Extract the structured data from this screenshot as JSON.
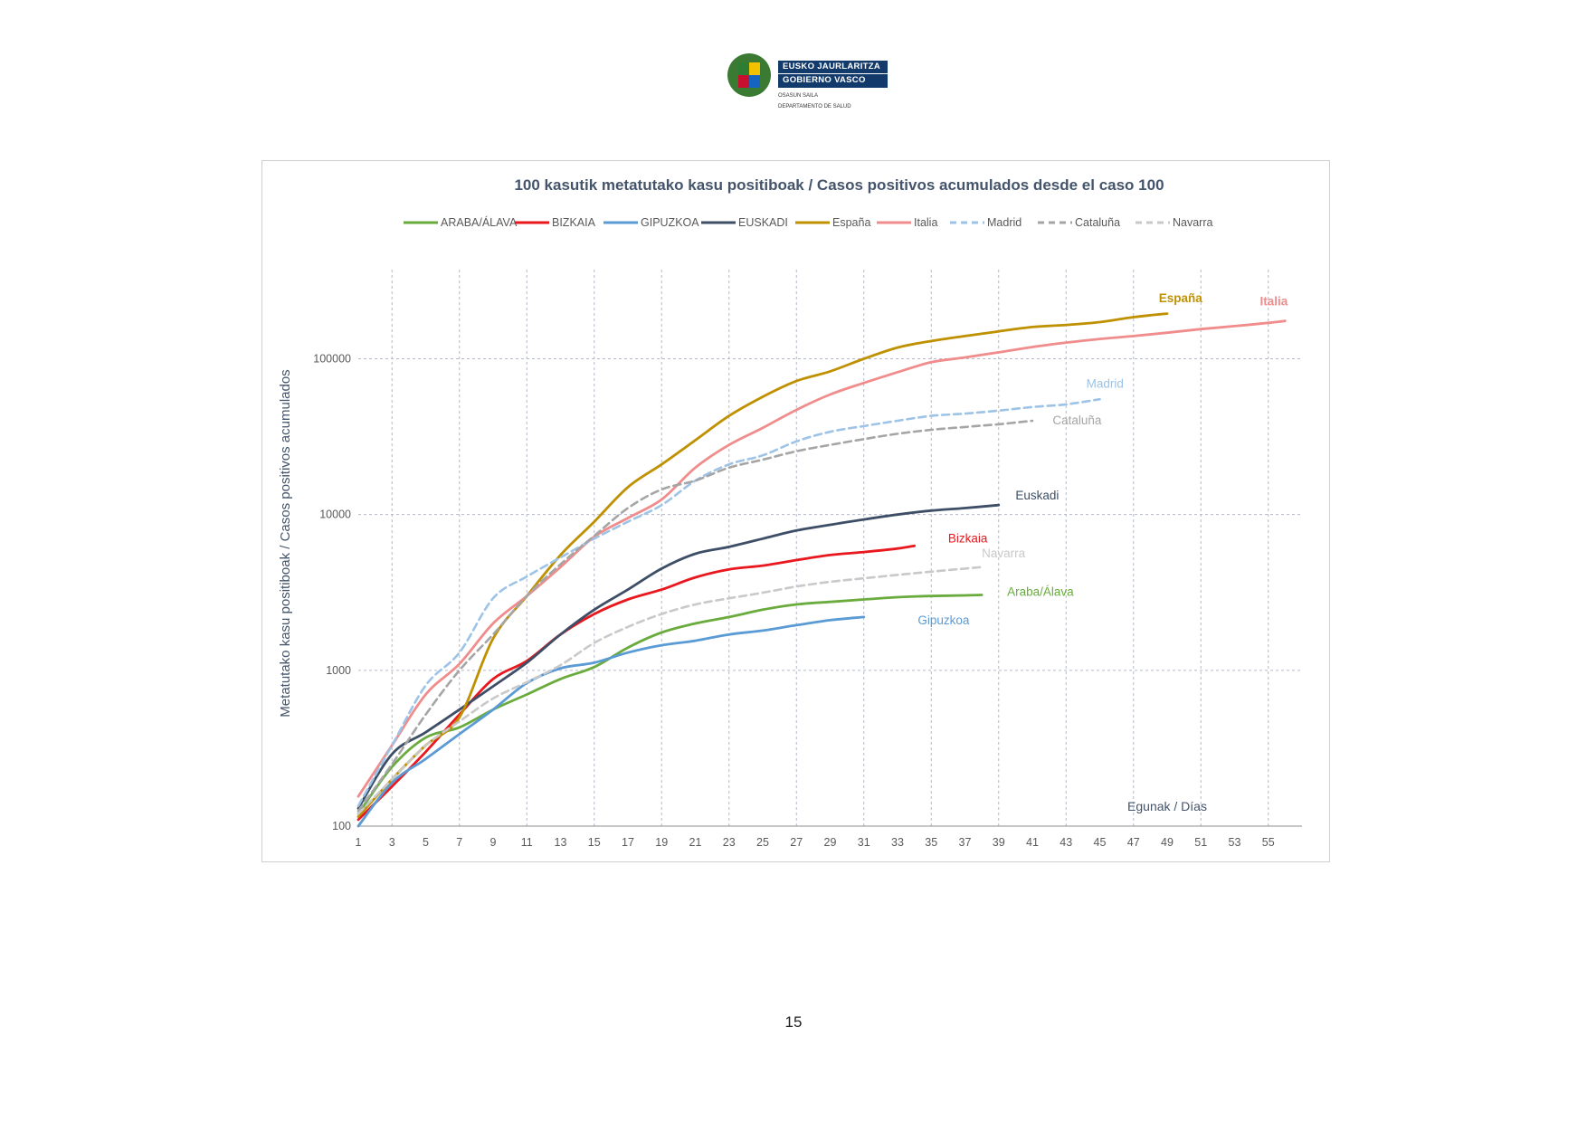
{
  "header": {
    "logo_line1": "EUSKO JAURLARITZA",
    "logo_line2": "GOBIERNO VASCO",
    "dept_line1": "OSASUN SAILA",
    "dept_line2": "DEPARTAMENTO DE SALUD"
  },
  "page_number": "15",
  "chart_data": {
    "type": "line",
    "title": "100 kasutik metatutako kasu positiboak / Casos positivos acumulados desde el caso 100",
    "xlabel": "Egunak / Días",
    "ylabel": "Metatutako kasu positiboak / Casos positivos acumulados",
    "yscale": "log",
    "ylim": [
      100,
      250000
    ],
    "xlim": [
      1,
      57
    ],
    "x_ticks": [
      "1",
      "3",
      "5",
      "7",
      "9",
      "11",
      "13",
      "15",
      "17",
      "19",
      "21",
      "23",
      "25",
      "27",
      "29",
      "31",
      "33",
      "35",
      "37",
      "39",
      "41",
      "43",
      "45",
      "47",
      "49",
      "51",
      "53",
      "55"
    ],
    "y_ticks": [
      "100",
      "1000",
      "10000",
      "100000"
    ],
    "grid": "dashed",
    "legend_position": "top",
    "series": [
      {
        "name": "ARABA/ÁLAVA",
        "legend": "ARABA/ÁLAVA",
        "label": "Araba/Álava",
        "color": "#6aab3e",
        "dash": false,
        "label_x": 39.5,
        "label_y": 3000,
        "x": [
          1,
          3,
          5,
          7,
          9,
          11,
          13,
          15,
          17,
          19,
          21,
          23,
          25,
          27,
          29,
          31,
          33,
          35,
          37,
          38
        ],
        "y": [
          120,
          240,
          370,
          430,
          560,
          700,
          880,
          1050,
          1400,
          1750,
          2000,
          2200,
          2450,
          2650,
          2750,
          2850,
          2950,
          3000,
          3030,
          3050
        ]
      },
      {
        "name": "BIZKAIA",
        "legend": "BIZKAIA",
        "label": "Bizkaia",
        "color": "#e8181e",
        "dash": false,
        "label_x": 36,
        "label_y": 6600,
        "x": [
          1,
          3,
          5,
          7,
          9,
          11,
          13,
          15,
          17,
          19,
          21,
          23,
          25,
          27,
          29,
          31,
          33,
          34
        ],
        "y": [
          110,
          180,
          300,
          520,
          880,
          1150,
          1700,
          2300,
          2850,
          3300,
          3950,
          4450,
          4700,
          5100,
          5500,
          5750,
          6050,
          6300
        ]
      },
      {
        "name": "GIPUZKOA",
        "legend": "GIPUZKOA",
        "label": "Gipuzkoa",
        "color": "#5b9bd5",
        "dash": false,
        "label_x": 34.2,
        "label_y": 1970,
        "x": [
          1,
          3,
          5,
          7,
          9,
          11,
          13,
          15,
          17,
          19,
          21,
          23,
          25,
          27,
          29,
          31
        ],
        "y": [
          100,
          190,
          270,
          390,
          560,
          830,
          1030,
          1120,
          1300,
          1450,
          1550,
          1700,
          1800,
          1950,
          2100,
          2200
        ]
      },
      {
        "name": "EUSKADI",
        "legend": "EUSKADI",
        "label": "Euskadi",
        "color": "#3d4e66",
        "dash": false,
        "label_x": 40,
        "label_y": 12500,
        "x": [
          1,
          3,
          5,
          7,
          9,
          11,
          13,
          15,
          17,
          19,
          21,
          23,
          25,
          27,
          29,
          31,
          33,
          35,
          37,
          39
        ],
        "y": [
          130,
          290,
          400,
          560,
          790,
          1120,
          1700,
          2450,
          3300,
          4500,
          5600,
          6200,
          7000,
          7900,
          8600,
          9300,
          10000,
          10600,
          11000,
          11500
        ]
      },
      {
        "name": "España",
        "legend": "España",
        "label": "España",
        "color": "#bf9000",
        "dash": false,
        "label_x": 48.5,
        "label_y": 230000,
        "x": [
          1,
          3,
          5,
          7,
          9,
          11,
          13,
          15,
          17,
          19,
          21,
          23,
          25,
          27,
          29,
          31,
          33,
          35,
          37,
          39,
          41,
          43,
          45,
          47,
          49
        ],
        "y": [
          115,
          200,
          330,
          500,
          1600,
          3000,
          5500,
          9000,
          15000,
          21000,
          30000,
          43000,
          57000,
          72000,
          83000,
          100000,
          118000,
          130000,
          140000,
          150000,
          160000,
          165000,
          172000,
          185000,
          195000
        ]
      },
      {
        "name": "Italia",
        "legend": "Italia",
        "label": "Italia",
        "color": "#f08c8c",
        "dash": false,
        "label_x": 54.5,
        "label_y": 220000,
        "x": [
          1,
          3,
          5,
          7,
          9,
          11,
          13,
          15,
          17,
          19,
          21,
          23,
          25,
          27,
          29,
          31,
          33,
          35,
          37,
          39,
          41,
          43,
          45,
          47,
          49,
          51,
          53,
          55,
          56
        ],
        "y": [
          155,
          330,
          700,
          1100,
          2000,
          3000,
          4600,
          7200,
          9500,
          12500,
          20000,
          28000,
          36000,
          47000,
          59000,
          70000,
          82000,
          95000,
          102000,
          110000,
          119000,
          127000,
          134000,
          140000,
          147000,
          155000,
          162000,
          170000,
          175000
        ]
      },
      {
        "name": "Madrid",
        "legend": "Madrid",
        "label": "Madrid",
        "color": "#9dc3e6",
        "dash": true,
        "label_x": 44.2,
        "label_y": 65000,
        "x": [
          1,
          3,
          5,
          7,
          9,
          11,
          13,
          15,
          17,
          19,
          21,
          23,
          25,
          27,
          29,
          31,
          33,
          35,
          37,
          39,
          41,
          43,
          45
        ],
        "y": [
          135,
          330,
          800,
          1300,
          2900,
          4000,
          5300,
          7000,
          9000,
          11500,
          16500,
          21000,
          24000,
          29500,
          34000,
          37000,
          40000,
          43000,
          44500,
          46500,
          49000,
          51000,
          55000
        ]
      },
      {
        "name": "Cataluña",
        "legend": "Cataluña",
        "label": "Cataluña",
        "color": "#a5a5a5",
        "dash": true,
        "label_x": 42.2,
        "label_y": 38000,
        "x": [
          1,
          3,
          5,
          7,
          9,
          11,
          13,
          15,
          17,
          19,
          21,
          23,
          25,
          27,
          29,
          31,
          33,
          35,
          37,
          39,
          41
        ],
        "y": [
          125,
          250,
          520,
          1000,
          1700,
          3000,
          4800,
          7300,
          11000,
          14500,
          16500,
          20000,
          22500,
          25500,
          28000,
          30500,
          33000,
          35000,
          36500,
          38000,
          40000
        ]
      },
      {
        "name": "Navarra",
        "legend": "Navarra",
        "label": "Navarra",
        "color": "#c9c9c9",
        "dash": true,
        "label_x": 38,
        "label_y": 5300,
        "x": [
          1,
          3,
          5,
          7,
          9,
          11,
          13,
          15,
          17,
          19,
          21,
          23,
          25,
          27,
          29,
          31,
          33,
          35,
          37,
          38
        ],
        "y": [
          120,
          200,
          330,
          470,
          660,
          840,
          1080,
          1500,
          1900,
          2300,
          2650,
          2900,
          3150,
          3450,
          3700,
          3900,
          4100,
          4300,
          4500,
          4600
        ]
      }
    ]
  }
}
